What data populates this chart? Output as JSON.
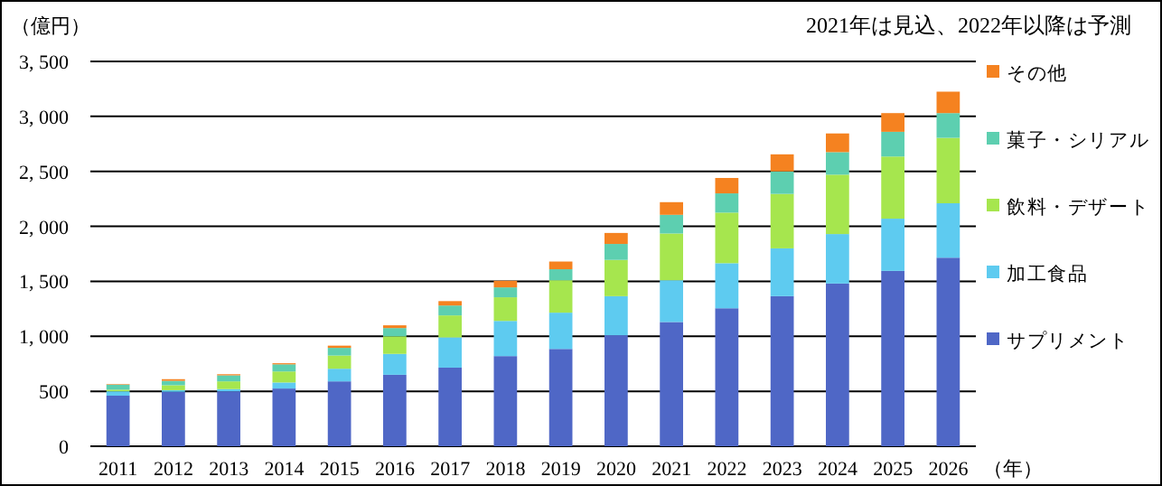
{
  "chart_data": {
    "type": "bar",
    "stacked": true,
    "ylabel": "（億円）",
    "xlabel": "（年）",
    "annotations": [
      "2021年は見込、2022年以降は予測"
    ],
    "categories": [
      "2011",
      "2012",
      "2013",
      "2014",
      "2015",
      "2016",
      "2017",
      "2018",
      "2019",
      "2020",
      "2021",
      "2022",
      "2023",
      "2024",
      "2025",
      "2026"
    ],
    "series": [
      {
        "name": "サプリメント",
        "color": "#4f67c6",
        "values": [
          460,
          495,
          500,
          525,
          590,
          650,
          715,
          820,
          885,
          1010,
          1130,
          1255,
          1365,
          1480,
          1595,
          1715
        ]
      },
      {
        "name": "加工食品",
        "color": "#5ecbf0",
        "values": [
          40,
          15,
          20,
          55,
          115,
          190,
          275,
          320,
          330,
          355,
          380,
          410,
          435,
          450,
          475,
          495
        ]
      },
      {
        "name": "飲料・デザート",
        "color": "#a6e64e",
        "values": [
          15,
          45,
          70,
          100,
          120,
          160,
          200,
          215,
          295,
          330,
          425,
          460,
          495,
          540,
          565,
          595
        ]
      },
      {
        "name": "菓子・シリアル",
        "color": "#5dcfb0",
        "values": [
          45,
          40,
          55,
          65,
          70,
          75,
          90,
          90,
          100,
          145,
          170,
          175,
          205,
          205,
          225,
          225
        ]
      },
      {
        "name": "その他",
        "color": "#f58220",
        "values": [
          5,
          15,
          10,
          10,
          20,
          25,
          40,
          60,
          70,
          100,
          115,
          140,
          155,
          170,
          170,
          195
        ]
      }
    ],
    "ylim": [
      0,
      3500
    ],
    "yticks": [
      0,
      500,
      {
        "value": 1000,
        "label": "1, 000"
      },
      {
        "value": 1500,
        "label": "1, 500"
      },
      {
        "value": 2000,
        "label": "2, 000"
      },
      {
        "value": 2500,
        "label": "2, 500"
      },
      {
        "value": 3000,
        "label": "3, 000"
      },
      {
        "value": 3500,
        "label": "3, 500"
      }
    ],
    "grid": "y",
    "legend": "right"
  }
}
